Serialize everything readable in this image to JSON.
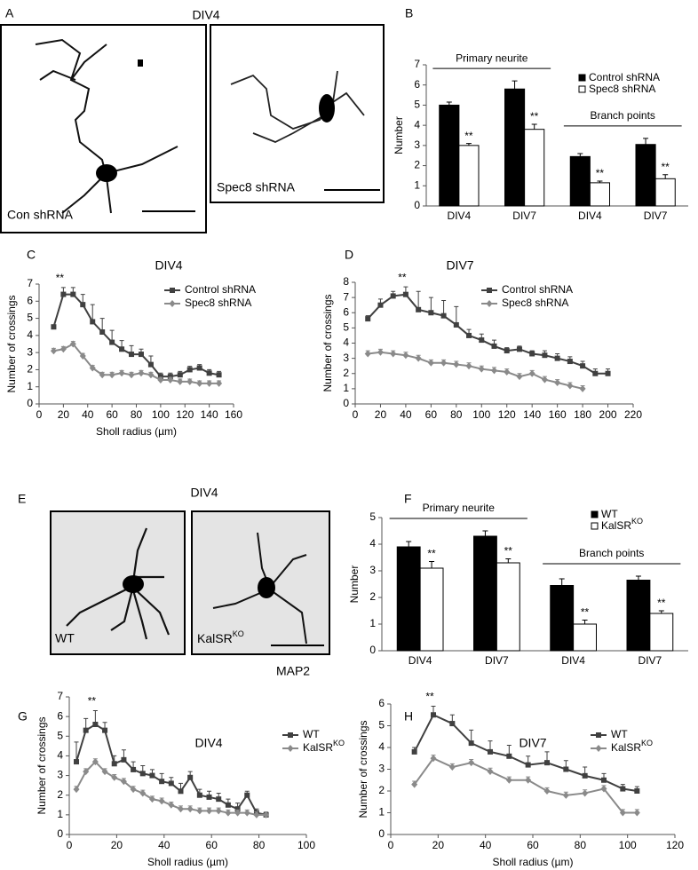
{
  "image_panels": [
    {
      "letter": "A",
      "title": "DIV4",
      "images": [
        {
          "text": "Con shRNA"
        },
        {
          "text": "Spec8 shRNA"
        }
      ]
    },
    {
      "letter": "E",
      "title": "DIV4",
      "images": [
        {
          "text": "WT"
        },
        {
          "text": "KalSR",
          "sup": "KO"
        }
      ],
      "caption": "MAP2"
    }
  ],
  "chart_data": [
    {
      "type": "bar",
      "letter": "B",
      "y_label": "Number",
      "categories": [
        "DIV4",
        "DIV7",
        "DIV4",
        "DIV7"
      ],
      "group_labels": [
        "Primary neurite",
        "Branch points"
      ],
      "ylim": [
        0,
        7
      ],
      "yticks": [
        0,
        1,
        2,
        3,
        4,
        5,
        6,
        7
      ],
      "series": [
        {
          "name": "Control shRNA",
          "color": "#000000",
          "values": [
            5.0,
            5.8,
            2.45,
            3.05
          ],
          "errors": [
            0.15,
            0.4,
            0.15,
            0.3
          ]
        },
        {
          "name": "Spec8 shRNA",
          "color": "#ffffff",
          "values": [
            3.0,
            3.8,
            1.15,
            1.35
          ],
          "errors": [
            0.1,
            0.25,
            0.08,
            0.2
          ],
          "significance": [
            "**",
            "**",
            "**",
            "**"
          ]
        }
      ]
    },
    {
      "type": "line",
      "letter": "C",
      "title": "DIV4",
      "annotation": "**",
      "x_label": "Sholl radius (µm)",
      "y_label": "Number of crossings",
      "x": [
        12,
        20,
        28,
        36,
        44,
        52,
        60,
        68,
        76,
        84,
        92,
        100,
        108,
        116,
        124,
        132,
        140,
        148
      ],
      "xlim": [
        0,
        160
      ],
      "xticks": [
        0,
        20,
        40,
        60,
        80,
        100,
        120,
        140,
        160
      ],
      "ylim": [
        0,
        7
      ],
      "yticks": [
        0,
        1,
        2,
        3,
        4,
        5,
        6,
        7
      ],
      "series": [
        {
          "name": "Control shRNA",
          "color": "#404040",
          "values": [
            4.5,
            6.4,
            6.4,
            5.8,
            4.8,
            4.2,
            3.6,
            3.2,
            2.9,
            2.9,
            2.3,
            1.6,
            1.6,
            1.7,
            2.0,
            2.1,
            1.8,
            1.7
          ],
          "errors": [
            0.1,
            0.4,
            0.4,
            0.6,
            1.0,
            0.8,
            0.7,
            0.5,
            0.5,
            0.3,
            0.5,
            0.2,
            0.2,
            0.2,
            0.2,
            0.2,
            0.2,
            0.2
          ]
        },
        {
          "name": "Spec8 shRNA",
          "color": "#8a8a8a",
          "values": [
            3.1,
            3.2,
            3.5,
            2.8,
            2.1,
            1.7,
            1.7,
            1.8,
            1.7,
            1.8,
            1.7,
            1.4,
            1.4,
            1.3,
            1.3,
            1.2,
            1.2,
            1.2
          ],
          "errors": [
            0.15,
            0.15,
            0.15,
            0.15,
            0.15,
            0.15,
            0.15,
            0.15,
            0.15,
            0.15,
            0.15,
            0.15,
            0.15,
            0.15,
            0.15,
            0.15,
            0.15,
            0.15
          ]
        }
      ]
    },
    {
      "type": "line",
      "letter": "D",
      "title": "DIV7",
      "annotation": "**",
      "y_label": "Number of crossings",
      "x": [
        10,
        20,
        30,
        40,
        50,
        60,
        70,
        80,
        90,
        100,
        110,
        120,
        130,
        140,
        150,
        160,
        170,
        180,
        190,
        200
      ],
      "xlim": [
        0,
        220
      ],
      "xticks": [
        0,
        20,
        40,
        60,
        80,
        100,
        120,
        140,
        160,
        180,
        200,
        220
      ],
      "ylim": [
        0,
        8
      ],
      "yticks": [
        0,
        1,
        2,
        3,
        4,
        5,
        6,
        7,
        8
      ],
      "series": [
        {
          "name": "Control shRNA",
          "color": "#404040",
          "values": [
            5.6,
            6.5,
            7.1,
            7.2,
            6.2,
            6.0,
            5.8,
            5.2,
            4.5,
            4.2,
            3.8,
            3.5,
            3.6,
            3.3,
            3.2,
            3.0,
            2.8,
            2.5,
            2.0,
            2.0
          ],
          "errors": [
            0.2,
            0.4,
            0.3,
            0.5,
            1.2,
            1.0,
            1.0,
            1.2,
            0.4,
            0.4,
            0.4,
            0.2,
            0.2,
            0.2,
            0.3,
            0.3,
            0.3,
            0.3,
            0.3,
            0.3
          ]
        },
        {
          "name": "Spec8 shRNA",
          "color": "#8a8a8a",
          "values": [
            3.3,
            3.4,
            3.3,
            3.2,
            3.0,
            2.7,
            2.7,
            2.6,
            2.5,
            2.3,
            2.2,
            2.1,
            1.8,
            2.0,
            1.6,
            1.4,
            1.2,
            1.0,
            null,
            null
          ],
          "errors": [
            0.2,
            0.2,
            0.2,
            0.2,
            0.2,
            0.2,
            0.2,
            0.2,
            0.2,
            0.2,
            0.2,
            0.2,
            0.2,
            0.2,
            0.2,
            0.2,
            0.2,
            0.2,
            null,
            null
          ]
        }
      ]
    },
    {
      "type": "bar",
      "letter": "F",
      "y_label": "Number",
      "categories": [
        "DIV4",
        "DIV7",
        "DIV4",
        "DIV7"
      ],
      "group_labels": [
        "Primary neurite",
        "Branch points"
      ],
      "ylim": [
        0,
        5
      ],
      "yticks": [
        0,
        1,
        2,
        3,
        4,
        5
      ],
      "series": [
        {
          "name": "WT",
          "color": "#000000",
          "values": [
            3.9,
            4.3,
            2.45,
            2.65
          ],
          "errors": [
            0.2,
            0.2,
            0.25,
            0.15
          ]
        },
        {
          "name": "KalSR",
          "name_sup": "KO",
          "color": "#ffffff",
          "values": [
            3.1,
            3.3,
            1.0,
            1.4
          ],
          "errors": [
            0.25,
            0.15,
            0.15,
            0.1
          ],
          "significance": [
            "**",
            "**",
            "**",
            "**"
          ]
        }
      ]
    },
    {
      "type": "line",
      "letter": "G",
      "title": "DIV4",
      "annotation": "**",
      "x_label": "Sholl radius (µm)",
      "y_label": "Number of crossings",
      "x": [
        3,
        7,
        11,
        15,
        19,
        23,
        27,
        31,
        35,
        39,
        43,
        47,
        51,
        55,
        59,
        63,
        67,
        71,
        75,
        79,
        83
      ],
      "xlim": [
        0,
        100
      ],
      "xticks": [
        0,
        20,
        40,
        60,
        80,
        100
      ],
      "ylim": [
        0,
        7
      ],
      "yticks": [
        0,
        1,
        2,
        3,
        4,
        5,
        6,
        7
      ],
      "series": [
        {
          "name": "WT",
          "color": "#404040",
          "values": [
            3.7,
            5.3,
            5.6,
            5.3,
            3.6,
            3.8,
            3.3,
            3.1,
            3.0,
            2.7,
            2.6,
            2.2,
            2.9,
            2.0,
            1.9,
            1.8,
            1.5,
            1.3,
            2.0,
            1.1,
            1.0
          ],
          "errors": [
            1.0,
            0.6,
            0.7,
            0.4,
            0.4,
            0.5,
            0.4,
            0.4,
            0.3,
            0.4,
            0.3,
            0.4,
            0.3,
            0.3,
            0.3,
            0.3,
            0.3,
            0.3,
            0.2,
            0.2,
            0.1
          ]
        },
        {
          "name": "KalSR",
          "name_sup": "KO",
          "color": "#8a8a8a",
          "values": [
            2.3,
            3.2,
            3.7,
            3.2,
            2.9,
            2.7,
            2.3,
            2.1,
            1.8,
            1.7,
            1.5,
            1.3,
            1.3,
            1.2,
            1.2,
            1.2,
            1.1,
            1.1,
            1.1,
            1.0,
            1.0
          ],
          "errors": [
            0.15,
            0.15,
            0.15,
            0.15,
            0.15,
            0.15,
            0.15,
            0.15,
            0.15,
            0.15,
            0.15,
            0.15,
            0.15,
            0.15,
            0.15,
            0.15,
            0.15,
            0.15,
            0.15,
            0.15,
            0.15
          ]
        }
      ]
    },
    {
      "type": "line",
      "letter": "H",
      "title": "DIV7",
      "annotation": "**",
      "x_label": "Sholl radius (µm)",
      "y_label": "Number of crossings",
      "x": [
        10,
        18,
        26,
        34,
        42,
        50,
        58,
        66,
        74,
        82,
        90,
        98,
        104
      ],
      "xlim": [
        0,
        120
      ],
      "xticks": [
        0,
        20,
        40,
        60,
        80,
        100,
        120
      ],
      "ylim": [
        0,
        6
      ],
      "yticks": [
        0,
        1,
        2,
        3,
        4,
        5,
        6
      ],
      "series": [
        {
          "name": "WT",
          "color": "#404040",
          "values": [
            3.8,
            5.5,
            5.1,
            4.2,
            3.8,
            3.6,
            3.2,
            3.3,
            3.0,
            2.7,
            2.5,
            2.1,
            2.0
          ],
          "errors": [
            0.2,
            0.4,
            0.4,
            0.6,
            0.5,
            0.5,
            0.4,
            0.5,
            0.4,
            0.4,
            0.3,
            0.2,
            0.2
          ]
        },
        {
          "name": "KalSR",
          "name_sup": "KO",
          "color": "#8a8a8a",
          "values": [
            2.3,
            3.5,
            3.1,
            3.3,
            2.9,
            2.5,
            2.5,
            2.0,
            1.8,
            1.9,
            2.1,
            1.0,
            1.0
          ],
          "errors": [
            0.15,
            0.15,
            0.15,
            0.15,
            0.15,
            0.15,
            0.15,
            0.15,
            0.15,
            0.15,
            0.15,
            0.15,
            0.15
          ]
        }
      ]
    }
  ]
}
